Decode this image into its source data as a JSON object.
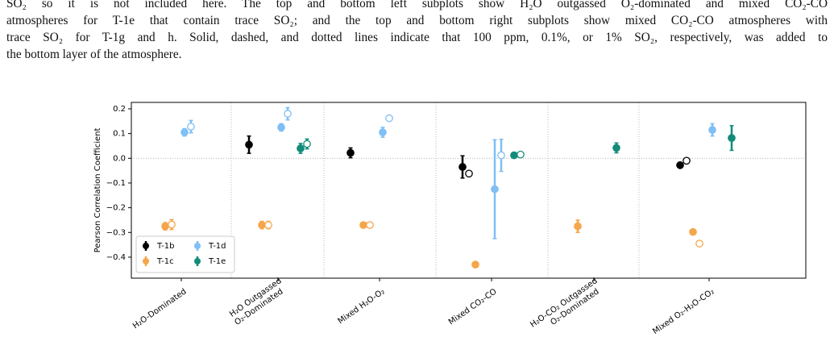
{
  "text": {
    "lines": [
      "SO₂ so it is not included here.  The top and bottom left subplots show H₂O outgassed O₂-dominated and mixed CO₂-CO",
      "atmospheres for T-1e that contain trace SO₂; and the top and bottom right subplots show mixed CO₂-CO atmospheres with",
      "trace SO₂ for T-1g and h. Solid, dashed, and dotted lines indicate that 100 ppm, 0.1%, or 1% SO₂, respectively, was added to",
      "the bottom layer of the atmosphere."
    ]
  },
  "chart_data": {
    "type": "errorbar",
    "ylabel": "Pearson Correlation Coefficient",
    "categories": [
      [
        "H₂O-Dominated"
      ],
      [
        "H₂O Outgassed",
        "O₂-Dominated"
      ],
      [
        "Mixed H₂O-O₂"
      ],
      [
        "Mixed CO₂-CO"
      ],
      [
        "H₂O-CO₂ Outgassed",
        "O₂-Dominated"
      ],
      [
        "Mixed O₂-H₂O-CO₂"
      ]
    ],
    "ylim": [
      -0.485,
      0.226
    ],
    "yticks": [
      0.2,
      0.1,
      {
        "value": 0,
        "label": "0.0"
      },
      {
        "value": -0.1,
        "label": "−0.1"
      },
      {
        "value": -0.2,
        "label": "−0.2"
      },
      {
        "value": -0.3,
        "label": "−0.3"
      },
      {
        "value": -0.4,
        "label": "−0.4"
      }
    ],
    "legend": "lower left",
    "series": [
      {
        "name": "T-1b",
        "color": "#000000",
        "values": [
          null,
          0.055,
          0.022,
          -0.035,
          null,
          -0.028
        ],
        "errors": [
          null,
          0.035,
          0.02,
          0.045,
          null,
          0.01
        ],
        "values_open": [
          null,
          null,
          null,
          -0.062,
          null,
          -0.01
        ],
        "errors_open": [
          null,
          null,
          null,
          0.01,
          null,
          0.01
        ]
      },
      {
        "name": "T-1c",
        "color": "#f5a64a",
        "values": [
          -0.275,
          -0.27,
          -0.27,
          -0.43,
          -0.275,
          -0.298
        ],
        "errors": [
          0.015,
          0.015,
          0.008,
          0.005,
          0.025,
          0.008
        ],
        "values_open": [
          -0.268,
          -0.27,
          -0.27,
          null,
          null,
          -0.345
        ],
        "errors_open": [
          0.02,
          0.015,
          0.008,
          null,
          null,
          0.008
        ]
      },
      {
        "name": "T-1d",
        "color": "#7fbff5",
        "values": [
          0.105,
          0.125,
          0.105,
          -0.125,
          null,
          0.115
        ],
        "errors": [
          0.015,
          0.015,
          0.02,
          0.2,
          null,
          0.025
        ],
        "values_open": [
          0.128,
          0.18,
          0.162,
          0.012,
          null,
          null
        ],
        "errors_open": [
          0.025,
          0.025,
          0.01,
          0.065,
          null,
          null
        ]
      },
      {
        "name": "T-1e",
        "color": "#128c7a",
        "values": [
          null,
          0.04,
          null,
          0.012,
          0.042,
          0.082
        ],
        "errors": [
          null,
          0.02,
          null,
          0.008,
          0.02,
          0.05
        ],
        "values_open": [
          null,
          0.058,
          null,
          0.015,
          null,
          null
        ],
        "errors_open": [
          null,
          0.02,
          null,
          0.008,
          null,
          null
        ]
      }
    ]
  }
}
